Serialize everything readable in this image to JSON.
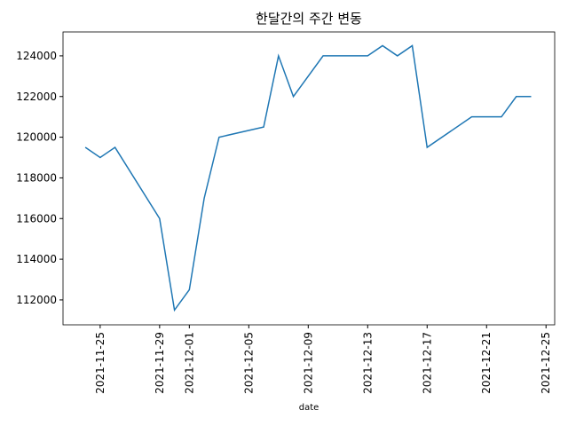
{
  "chart_data": {
    "type": "line",
    "title": "한달간의 주간 변동",
    "xlabel": "date",
    "x": [
      "2021-11-24",
      "2021-11-25",
      "2021-11-26",
      "2021-11-29",
      "2021-11-30",
      "2021-12-01",
      "2021-12-02",
      "2021-12-03",
      "2021-12-06",
      "2021-12-07",
      "2021-12-08",
      "2021-12-10",
      "2021-12-13",
      "2021-12-14",
      "2021-12-15",
      "2021-12-16",
      "2021-12-17",
      "2021-12-20",
      "2021-12-21",
      "2021-12-22",
      "2021-12-23",
      "2021-12-24"
    ],
    "values": [
      119500,
      119000,
      119500,
      116000,
      111500,
      112500,
      117000,
      120000,
      120500,
      124000,
      122000,
      124000,
      124000,
      124500,
      124000,
      124500,
      119500,
      121000,
      121000,
      121000,
      122000,
      122000
    ],
    "color": "#1f77b4",
    "xlim": [
      "2021-11-22T12:00Z",
      "2021-12-25T14:00Z"
    ],
    "xticks": [
      "2021-11-25",
      "2021-11-29",
      "2021-12-01",
      "2021-12-05",
      "2021-12-09",
      "2021-12-13",
      "2021-12-17",
      "2021-12-21",
      "2021-12-25"
    ],
    "ylim": [
      110775,
      125175
    ],
    "yticks": [
      112000,
      114000,
      116000,
      118000,
      120000,
      122000,
      124000
    ]
  }
}
